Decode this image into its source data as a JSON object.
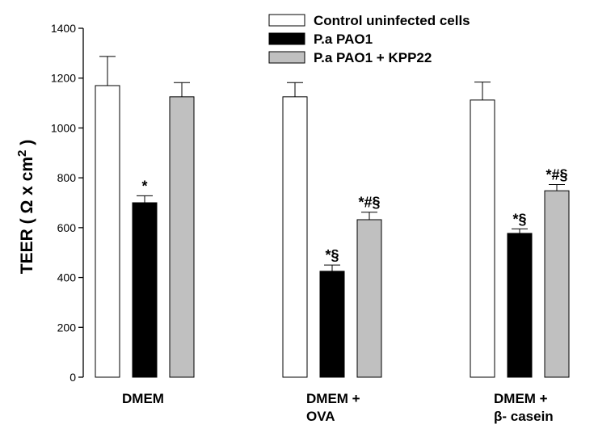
{
  "chart_data": {
    "type": "bar",
    "ylabel_text": "TEER ( Ω x cm",
    "ylabel_sup": "2",
    "ylabel_close": " )",
    "ylim": [
      0,
      1400
    ],
    "yticks": [
      0,
      200,
      400,
      600,
      800,
      1000,
      1200,
      1400
    ],
    "categories": [
      {
        "lines": [
          "DMEM"
        ]
      },
      {
        "lines": [
          "DMEM +",
          "OVA"
        ]
      },
      {
        "lines": [
          "DMEM +",
          "β- casein"
        ]
      }
    ],
    "series": [
      {
        "name": "Control uninfected cells",
        "color": "#ffffff",
        "values": [
          1170,
          1125,
          1112
        ],
        "errors": [
          117,
          57,
          72
        ],
        "marks": [
          "",
          "",
          ""
        ]
      },
      {
        "name": "P.a PAO1",
        "color": "#000000",
        "values": [
          700,
          425,
          577
        ],
        "errors": [
          28,
          25,
          18
        ],
        "marks": [
          "*",
          "*§",
          "*§"
        ]
      },
      {
        "name": "P.a PAO1 + KPP22",
        "color": "#c0c0c0",
        "values": [
          1125,
          632,
          748
        ],
        "errors": [
          57,
          30,
          25
        ],
        "marks": [
          "",
          "*#§",
          "*#§"
        ]
      }
    ]
  }
}
